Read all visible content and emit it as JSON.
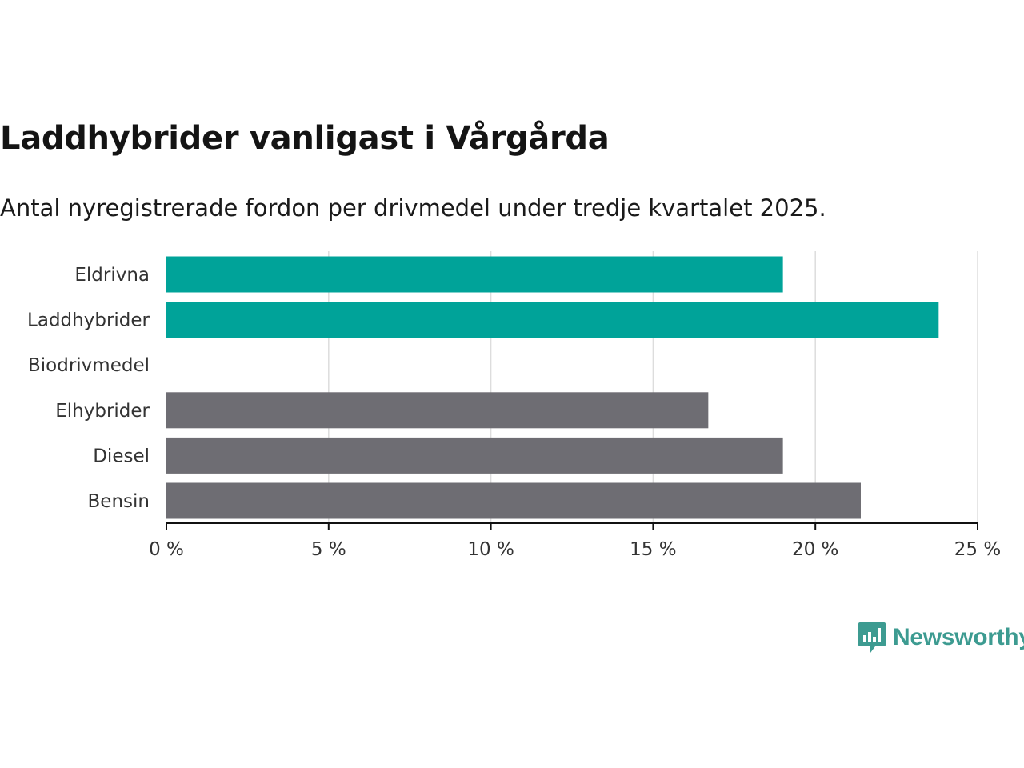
{
  "chart_data": {
    "type": "bar",
    "orientation": "horizontal",
    "title": "Laddhybrider vanligast i Vårgårda",
    "subtitle": "Antal nyregistrerade fordon per drivmedel under tredje kvartalet 2025.",
    "categories": [
      "Eldrivna",
      "Laddhybrider",
      "Biodrivmedel",
      "Elhybrider",
      "Diesel",
      "Bensin"
    ],
    "values": [
      19.0,
      23.8,
      0,
      16.7,
      19.0,
      21.4
    ],
    "colors": [
      "#00a399",
      "#00a399",
      "#00a399",
      "#6e6d73",
      "#6e6d73",
      "#6e6d73"
    ],
    "xlim": [
      0,
      25
    ],
    "ticks": [
      0,
      5,
      10,
      15,
      20,
      25
    ],
    "tick_labels": [
      "0 %",
      "5 %",
      "10 %",
      "15 %",
      "20 %",
      "25 %"
    ],
    "unit": "%",
    "grid": true,
    "xlabel": "",
    "ylabel": ""
  },
  "brand": {
    "name": "Newsworthy",
    "color": "#3d9b91"
  }
}
